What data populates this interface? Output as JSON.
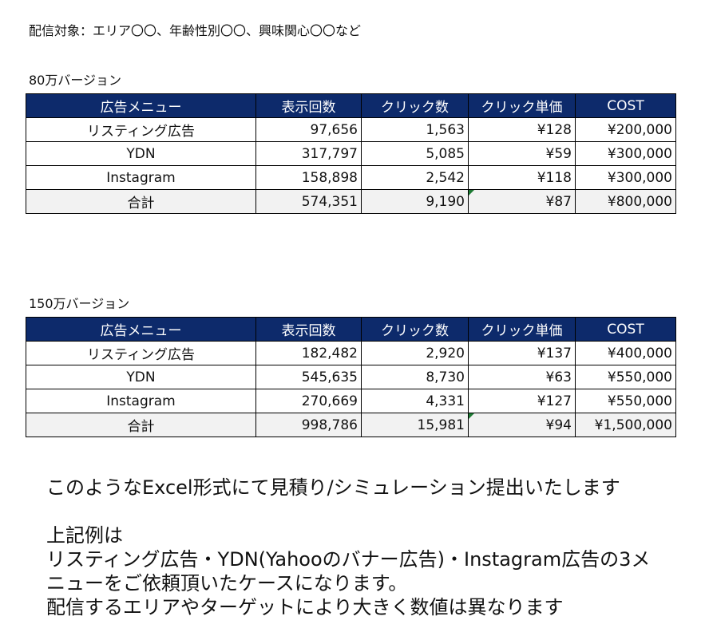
{
  "target_line": "配信対象：エリア〇〇、年齢性別〇〇、興味関心〇〇など",
  "headers": [
    "広告メニュー",
    "表示回数",
    "クリック数",
    "クリック単価",
    "COST"
  ],
  "tables": [
    {
      "label": "80万バージョン",
      "rows": [
        [
          "リスティング広告",
          "97,656",
          "1,563",
          "¥128",
          "¥200,000"
        ],
        [
          "YDN",
          "317,797",
          "5,085",
          "¥59",
          "¥300,000"
        ],
        [
          "Instagram",
          "158,898",
          "2,542",
          "¥118",
          "¥300,000"
        ],
        [
          "合計",
          "574,351",
          "9,190",
          "¥87",
          "¥800,000"
        ]
      ]
    },
    {
      "label": "150万バージョン",
      "rows": [
        [
          "リスティング広告",
          "182,482",
          "2,920",
          "¥137",
          "¥400,000"
        ],
        [
          "YDN",
          "545,635",
          "8,730",
          "¥63",
          "¥550,000"
        ],
        [
          "Instagram",
          "270,669",
          "4,331",
          "¥127",
          "¥550,000"
        ],
        [
          "合計",
          "998,786",
          "15,981",
          "¥94",
          "¥1,500,000"
        ]
      ]
    }
  ],
  "notes": {
    "line1": "このようなExcel形式にて見積り/シミュレーション提出いたします",
    "line2": "上記例は",
    "line3": "リスティング広告・YDN(Yahooのバナー広告)・Instagram広告の3メ",
    "line4": "ニューをご依頼頂いたケースになります。",
    "line5": "配信するエリアやターゲットにより大きく数値は異なります"
  },
  "colors": {
    "header_bg": "#0d2a6b",
    "total_bg": "#f2f2f2",
    "cell_flag": "#1e7b34"
  }
}
